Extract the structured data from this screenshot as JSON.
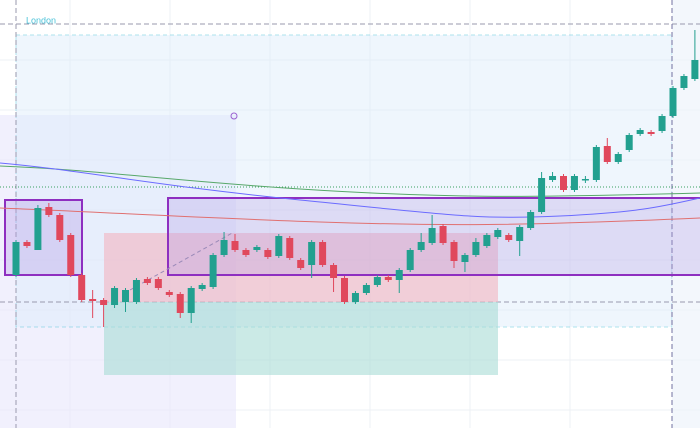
{
  "chart_data": {
    "type": "candlestick",
    "session_label": "London",
    "ylim": [
      0,
      428
    ],
    "up_color": "#22a08f",
    "down_color": "#e0485c",
    "open": [
      153,
      186,
      178,
      221,
      213,
      193,
      153,
      129,
      128,
      123,
      126,
      126,
      149,
      149,
      136,
      134,
      115,
      139,
      141,
      173,
      187,
      178,
      178,
      178,
      172,
      190,
      168,
      163,
      186,
      163,
      150,
      126,
      135,
      143,
      151,
      148,
      158,
      178,
      185,
      202,
      186,
      166,
      173,
      182,
      191,
      193,
      187,
      200,
      216,
      248,
      252,
      238,
      248,
      248,
      282,
      266,
      278,
      294,
      296,
      297,
      312,
      340,
      349
    ],
    "high": [
      188,
      188,
      223,
      225,
      215,
      195,
      155,
      138,
      130,
      142,
      140,
      150,
      151,
      151,
      138,
      136,
      142,
      145,
      175,
      196,
      194,
      180,
      183,
      180,
      194,
      192,
      170,
      188,
      188,
      165,
      152,
      137,
      145,
      153,
      153,
      160,
      180,
      195,
      213,
      204,
      188,
      175,
      190,
      195,
      200,
      195,
      203,
      218,
      256,
      256,
      254,
      254,
      252,
      283,
      290,
      276,
      295,
      300,
      298,
      314,
      342,
      354,
      398
    ],
    "low": [
      151,
      180,
      178,
      211,
      186,
      151,
      126,
      110,
      101,
      120,
      116,
      124,
      143,
      138,
      131,
      110,
      105,
      137,
      139,
      171,
      176,
      171,
      176,
      169,
      170,
      168,
      158,
      150,
      161,
      136,
      124,
      124,
      133,
      141,
      146,
      135,
      156,
      176,
      183,
      183,
      160,
      156,
      171,
      180,
      189,
      186,
      172,
      198,
      214,
      246,
      236,
      236,
      245,
      246,
      264,
      264,
      276,
      292,
      292,
      295,
      310,
      338,
      347
    ],
    "close": [
      186,
      182,
      220,
      213,
      188,
      153,
      128,
      127,
      123,
      140,
      138,
      148,
      145,
      140,
      133,
      115,
      140,
      143,
      173,
      188,
      178,
      173,
      181,
      171,
      192,
      170,
      160,
      186,
      163,
      150,
      126,
      135,
      143,
      151,
      148,
      158,
      178,
      186,
      200,
      185,
      167,
      173,
      186,
      193,
      198,
      188,
      201,
      216,
      250,
      252,
      238,
      252,
      249,
      281,
      266,
      274,
      293,
      298,
      294,
      312,
      340,
      352,
      368
    ]
  }
}
